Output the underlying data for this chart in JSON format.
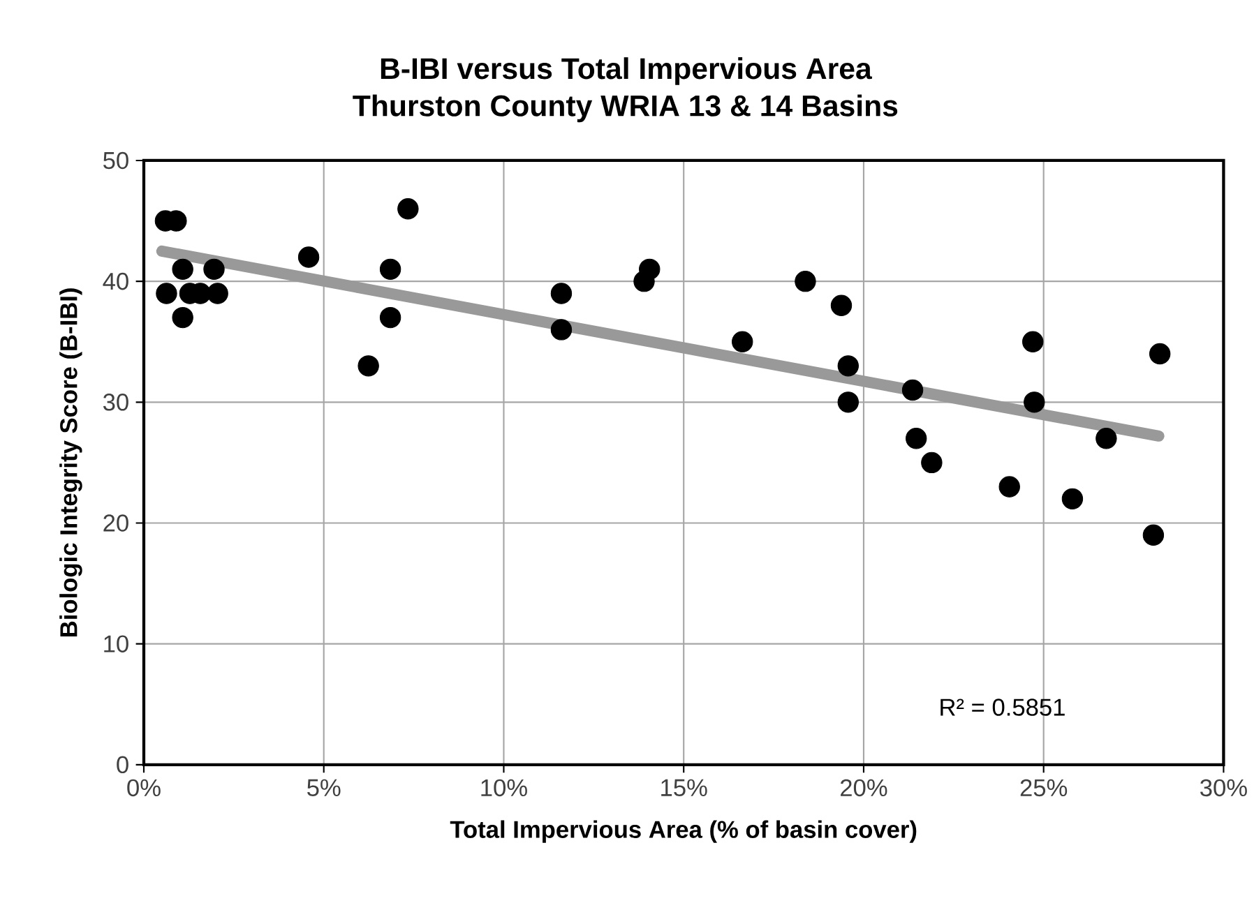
{
  "chart_data": {
    "type": "scatter",
    "title": "B-IBI versus Total Impervious Area",
    "subtitle": "Thurston County WRIA 13 & 14 Basins",
    "xlabel": "Total Impervious Area (% of basin cover)",
    "ylabel": "Biologic Integrity Score (B-IBI)",
    "series": [
      {
        "color": "#000000",
        "marker": "circle",
        "x": [
          0.6,
          0.9,
          1.08,
          1.95,
          0.63,
          1.28,
          1.57,
          2.05,
          1.08,
          4.58,
          6.85,
          6.85,
          6.24,
          7.34,
          11.6,
          11.6,
          13.9,
          14.05,
          18.38,
          19.38,
          16.63,
          19.57,
          19.57,
          21.36,
          21.46,
          21.89,
          24.05,
          24.7,
          24.74,
          25.8,
          26.74,
          28.23,
          28.05
        ],
        "values": [
          45,
          45,
          41,
          41,
          39,
          39,
          39,
          39,
          37,
          42,
          41,
          37,
          33,
          46,
          39,
          36,
          40,
          41,
          40,
          38,
          35,
          33,
          30,
          31,
          27,
          25,
          23,
          35,
          30,
          22,
          27,
          34,
          19
        ]
      },
      {
        "type": "line",
        "color": "#999999",
        "marker": "none",
        "x": [
          0.5,
          28.2
        ],
        "values": [
          42.5,
          27.2
        ]
      }
    ],
    "xlim": [
      0,
      30
    ],
    "ylim": [
      0,
      50
    ],
    "xticks": [
      {
        "value": 0,
        "label": "0%"
      },
      {
        "value": 5,
        "label": "5%"
      },
      {
        "value": 10,
        "label": "10%"
      },
      {
        "value": 15,
        "label": "15%"
      },
      {
        "value": 20,
        "label": "20%"
      },
      {
        "value": 25,
        "label": "25%"
      },
      {
        "value": 30,
        "label": "30%"
      }
    ],
    "yticks": [
      0,
      10,
      20,
      30,
      40,
      50
    ],
    "grid": true,
    "annotations": [
      "R² = 0.5851"
    ]
  }
}
